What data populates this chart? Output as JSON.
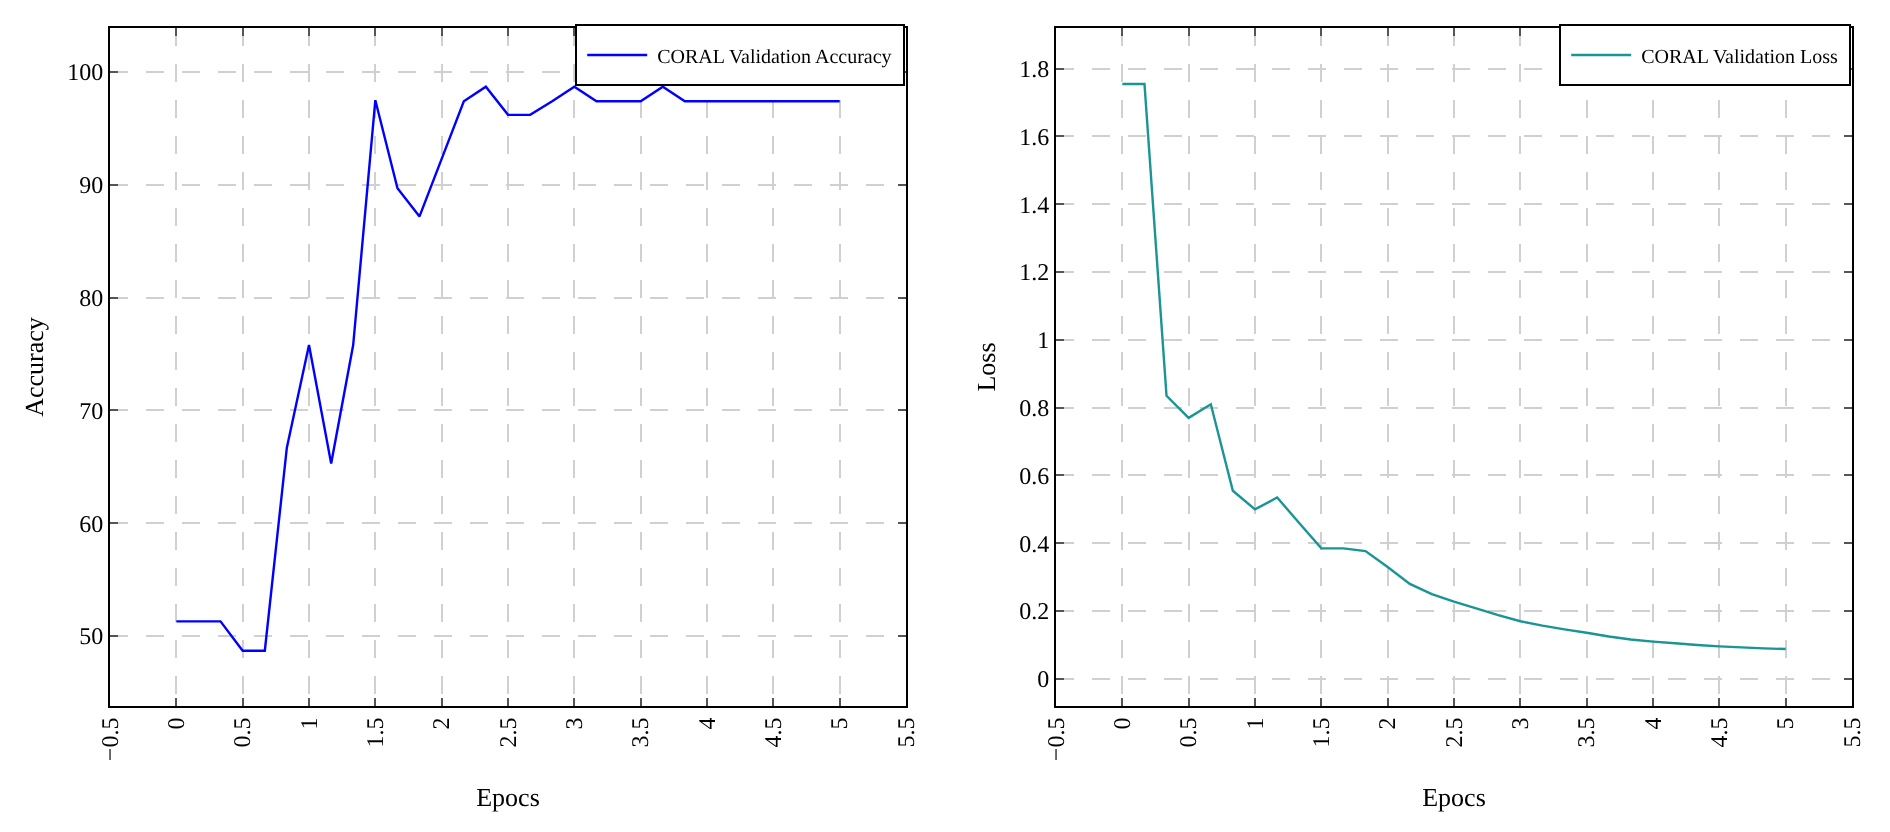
{
  "chart_data": [
    {
      "type": "line",
      "xlabel": "Epocs",
      "ylabel": "Accuracy",
      "legend": "top right",
      "grid": true,
      "line_style": "solid",
      "marker": "none",
      "x": [
        0,
        0.167,
        0.333,
        0.5,
        0.667,
        0.833,
        1,
        1.167,
        1.333,
        1.5,
        1.667,
        1.833,
        2,
        2.167,
        2.333,
        2.5,
        2.667,
        2.833,
        3,
        3.167,
        3.333,
        3.5,
        3.667,
        3.833,
        4,
        4.167,
        4.333,
        4.5,
        4.667,
        4.833,
        5
      ],
      "series": [
        {
          "name": "CORAL Validation Accuracy",
          "color": "#0000ff",
          "values": [
            51.3,
            51.3,
            51.3,
            48.7,
            48.7,
            66.7,
            75.8,
            65.3,
            75.8,
            97.5,
            89.7,
            87.2,
            92.3,
            97.4,
            98.7,
            96.2,
            96.2,
            97.4,
            98.7,
            97.4,
            97.4,
            97.4,
            98.7,
            97.4,
            97.4,
            97.4,
            97.4,
            97.4,
            97.4,
            97.4,
            97.4
          ]
        }
      ],
      "xlim": [
        -0.5,
        5.5
      ],
      "xticks": [
        {
          "value": -0.5,
          "label": "−0.5"
        },
        0,
        0.5,
        1,
        1.5,
        2,
        2.5,
        3,
        3.5,
        4,
        4.5,
        5,
        5.5
      ],
      "ylim": [
        43.8,
        103.9
      ],
      "yticks": [
        50,
        60,
        70,
        80,
        90,
        100
      ]
    },
    {
      "type": "line",
      "xlabel": "Epocs",
      "ylabel": "Loss",
      "legend": "top right",
      "grid": true,
      "line_style": "solid",
      "marker": "none",
      "x": [
        0,
        0.167,
        0.333,
        0.5,
        0.667,
        0.833,
        1,
        1.167,
        1.333,
        1.5,
        1.667,
        1.833,
        2,
        2.167,
        2.333,
        2.5,
        2.667,
        2.833,
        3,
        3.167,
        3.333,
        3.5,
        3.667,
        3.833,
        4,
        4.167,
        4.333,
        4.5,
        4.667,
        4.833,
        5
      ],
      "series": [
        {
          "name": "CORAL Validation Loss",
          "color": "#1a9494",
          "values": [
            1.755,
            1.755,
            0.835,
            0.77,
            0.81,
            0.555,
            0.5,
            0.535,
            0.46,
            0.385,
            0.385,
            0.377,
            0.33,
            0.28,
            0.25,
            0.228,
            0.208,
            0.188,
            0.17,
            0.157,
            0.146,
            0.136,
            0.125,
            0.116,
            0.11,
            0.105,
            0.1,
            0.096,
            0.093,
            0.09,
            0.088
          ]
        }
      ],
      "xlim": [
        -0.5,
        5.5
      ],
      "xticks": [
        {
          "value": -0.5,
          "label": "−0.5"
        },
        0,
        0.5,
        1,
        1.5,
        2,
        2.5,
        3,
        3.5,
        4,
        4.5,
        5,
        5.5
      ],
      "ylim": [
        -0.08,
        1.92
      ],
      "yticks": [
        0,
        0.2,
        0.4,
        0.6,
        0.8,
        1,
        1.2,
        1.4,
        1.6,
        1.8
      ]
    }
  ]
}
